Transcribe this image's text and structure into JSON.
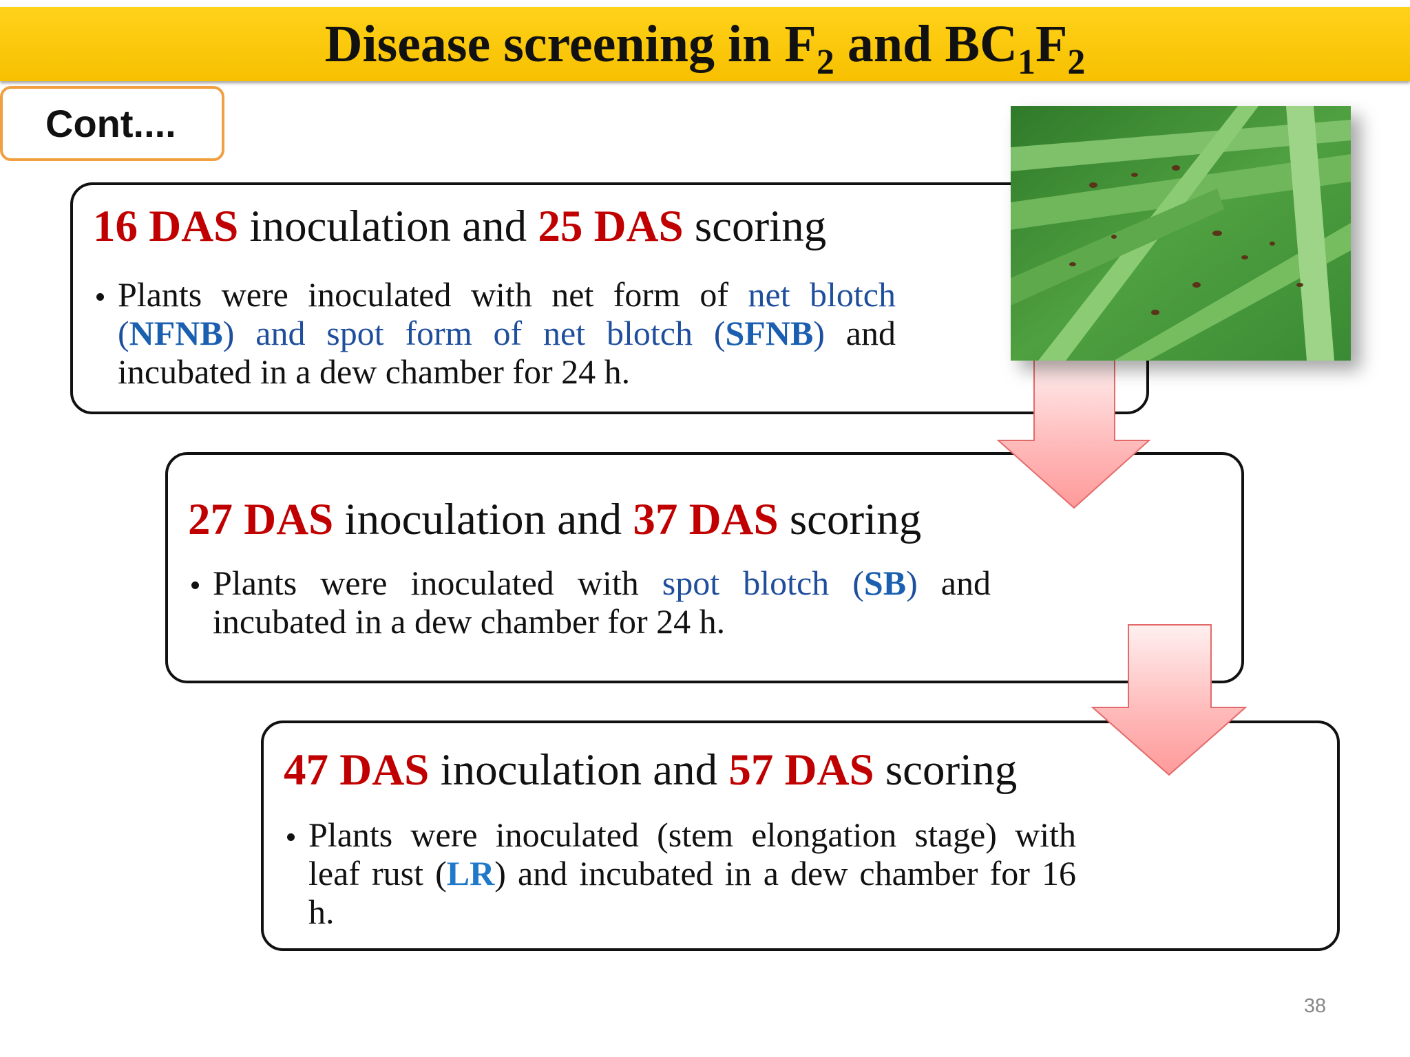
{
  "title": {
    "parts": [
      "Disease screening in F",
      "2",
      " and BC",
      "1",
      "F",
      "2"
    ]
  },
  "tag": "Cont....",
  "boxes": [
    {
      "heading": [
        "16 DAS",
        " inoculation and ",
        "25 DAS",
        " scoring"
      ],
      "bullet": [
        "Plants were inoculated with net form of ",
        "net blotch",
        " (",
        "NFNB",
        ") and spot form of net blotch (",
        "SFNB",
        ")",
        " and incubated in a dew chamber for 24 h."
      ]
    },
    {
      "heading": [
        "27 DAS",
        " inoculation and ",
        "37 DAS",
        " scoring"
      ],
      "bullet": [
        "Plants were inoculated with ",
        "spot blotch",
        " (",
        "SB",
        ")",
        " and incubated in a dew chamber for 24 h."
      ]
    },
    {
      "heading": [
        "47 DAS",
        " inoculation and ",
        "57 DAS",
        " scoring"
      ],
      "bullet": [
        "Plants were inoculated (stem elongation stage) with leaf rust ",
        "(",
        "LR",
        ")",
        " and incubated in a dew chamber for 16 h."
      ]
    }
  ],
  "page_number": "38"
}
